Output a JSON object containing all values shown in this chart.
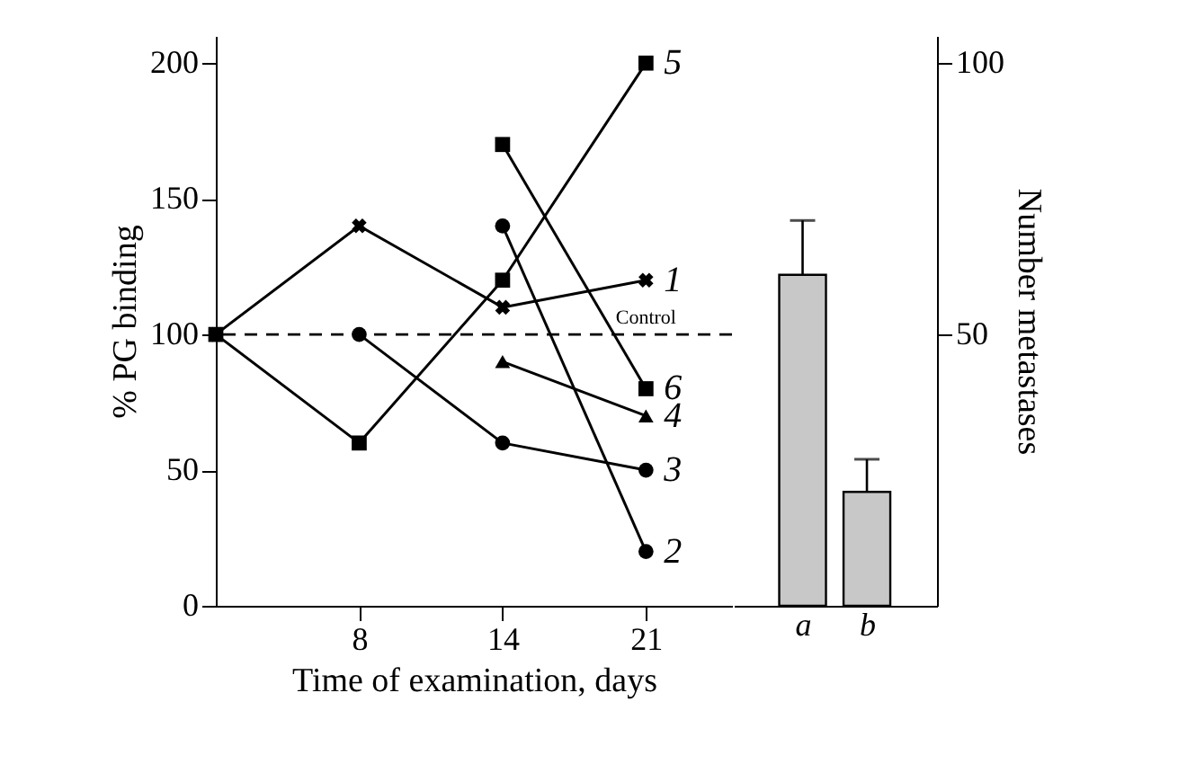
{
  "chart_data": [
    {
      "type": "line",
      "xlabel": "Time of examination, days",
      "ylabel": "% PG binding",
      "categories": [
        null,
        "8",
        "14",
        "21"
      ],
      "ylim": [
        0,
        210
      ],
      "yticks": [
        0,
        50,
        100,
        150,
        200
      ],
      "line_style": "solid",
      "series": [
        {
          "name": "1",
          "color": "#000000",
          "marker": "cross",
          "values": [
            100,
            140,
            110,
            120
          ]
        },
        {
          "name": "2",
          "color": "#000000",
          "marker": "circle",
          "values": [
            null,
            null,
            140,
            20
          ]
        },
        {
          "name": "3",
          "color": "#000000",
          "marker": "circle",
          "values": [
            null,
            100,
            60,
            50
          ]
        },
        {
          "name": "4",
          "color": "#000000",
          "marker": "triangle",
          "values": [
            null,
            null,
            90,
            70
          ]
        },
        {
          "name": "5",
          "color": "#000000",
          "marker": "square",
          "values": [
            100,
            60,
            120,
            200
          ]
        },
        {
          "name": "6",
          "color": "#000000",
          "marker": "square",
          "values": [
            null,
            null,
            170,
            80
          ]
        }
      ],
      "ref_lines": [
        {
          "axis": "y",
          "value": 100,
          "label": "Control",
          "color": "#000000",
          "line_style": "dashed"
        }
      ]
    },
    {
      "type": "bar",
      "categories": [
        "a",
        "b"
      ],
      "y2label": "Number metastases",
      "y2lim": [
        0,
        105
      ],
      "y2ticks": [
        50,
        100
      ],
      "series": [
        {
          "axis": "y2",
          "color": "#c8c8c8",
          "values": [
            61,
            21
          ],
          "errors": [
            [
              61,
              71
            ],
            [
              21,
              27
            ]
          ]
        }
      ]
    }
  ]
}
